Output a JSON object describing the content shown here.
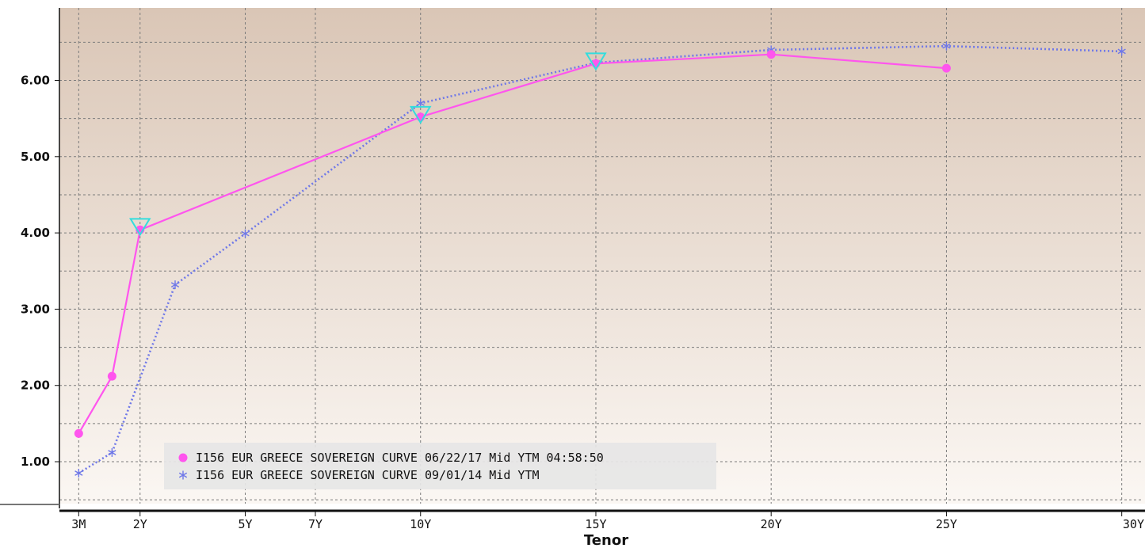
{
  "chart_data": {
    "type": "line",
    "title": "",
    "xlabel": "Tenor",
    "ylabel": "",
    "ylim": [
      0.45,
      6.95
    ],
    "yticks": [
      1.0,
      2.0,
      3.0,
      4.0,
      5.0,
      6.0
    ],
    "ytick_labels": [
      "1.00",
      "2.00",
      "3.00",
      "4.00",
      "5.00",
      "6.00"
    ],
    "xlim": [
      -0.3,
      30.55
    ],
    "xticks": [
      {
        "x": 0.25,
        "label": "3M"
      },
      {
        "x": 2,
        "label": "2Y"
      },
      {
        "x": 5,
        "label": "5Y"
      },
      {
        "x": 7,
        "label": "7Y"
      },
      {
        "x": 10,
        "label": "10Y"
      },
      {
        "x": 15,
        "label": "15Y"
      },
      {
        "x": 20,
        "label": "20Y"
      },
      {
        "x": 25,
        "label": "25Y"
      },
      {
        "x": 30,
        "label": "30Y"
      }
    ],
    "grid": true,
    "legend_position": "bottom-left",
    "series": [
      {
        "name": "I156 EUR GREECE SOVEREIGN CURVE 06/22/17 Mid YTM 04:58:50",
        "color": "#ff55ee",
        "marker": "circle",
        "line_style": "solid",
        "x": [
          0.25,
          1.2,
          2,
          10,
          15,
          20,
          25
        ],
        "y": [
          1.37,
          2.12,
          4.04,
          5.52,
          6.22,
          6.34,
          6.16
        ]
      },
      {
        "name": "I156 EUR GREECE SOVEREIGN CURVE 09/01/14 Mid YTM",
        "color": "#6f78e8",
        "marker": "asterisk",
        "line_style": "dotted",
        "x": [
          0.25,
          1.2,
          3,
          5,
          10,
          15,
          20,
          25,
          30
        ],
        "y": [
          0.85,
          1.12,
          3.32,
          3.99,
          5.7,
          6.23,
          6.4,
          6.45,
          6.38
        ]
      }
    ],
    "annotations": [
      {
        "type": "triangle-marker",
        "color": "#33dddd",
        "x": 2,
        "y": 4.08
      },
      {
        "type": "triangle-marker",
        "color": "#33dddd",
        "x": 10,
        "y": 5.55
      },
      {
        "type": "triangle-marker",
        "color": "#33dddd",
        "x": 15,
        "y": 6.25
      }
    ]
  }
}
